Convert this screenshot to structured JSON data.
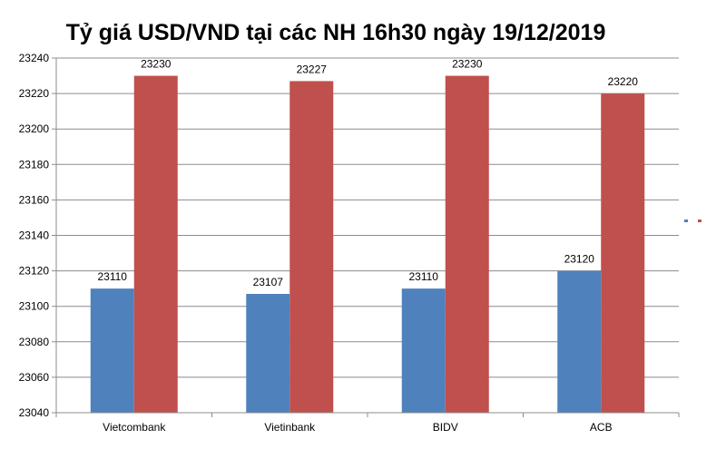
{
  "chart_data": {
    "type": "bar",
    "title": "Tỷ giá USD/VND tại các NH 16h30 ngày 19/12/2019",
    "xlabel": "",
    "ylabel": "",
    "categories": [
      "Vietcombank",
      "Vietinbank",
      "BIDV",
      "ACB"
    ],
    "series": [
      {
        "values": [
          23110,
          23107,
          23110,
          23120
        ],
        "color": "#4f81bd"
      },
      {
        "values": [
          23230,
          23227,
          23230,
          23220
        ],
        "color": "#c0504d"
      }
    ],
    "ylim": [
      23040,
      23240
    ],
    "yticks": [
      23040,
      23060,
      23080,
      23100,
      23120,
      23140,
      23160,
      23180,
      23200,
      23220,
      23240
    ],
    "grid": true,
    "legend": "right",
    "data_labels": true
  }
}
